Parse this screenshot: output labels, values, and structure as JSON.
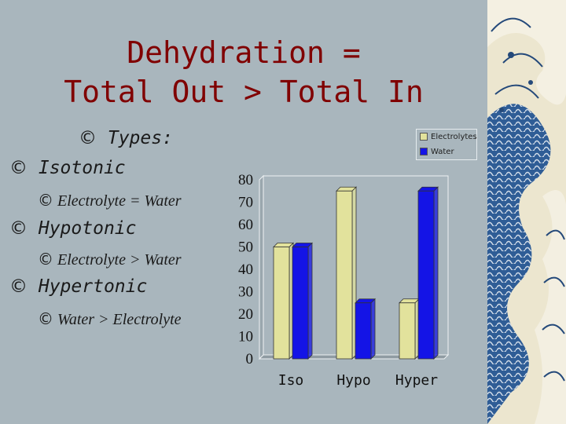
{
  "slide": {
    "title_line1": "Dehydration =",
    "title_line2": "Total Out > Total In",
    "bullet_symbol": "©",
    "types_label": "Types:",
    "items": [
      {
        "label": "Isotonic",
        "detail": "Electrolyte = Water"
      },
      {
        "label": "Hypotonic",
        "detail": "Electrolyte > Water"
      },
      {
        "label": "Hypertonic",
        "detail": "Water  > Electrolyte"
      }
    ]
  },
  "colors": {
    "title": "#800000",
    "background": "#a9b6bd",
    "electrolytes": "#e2e29c",
    "water": "#1414e6"
  },
  "chart_data": {
    "type": "bar",
    "categories": [
      "Iso",
      "Hypo",
      "Hyper"
    ],
    "series": [
      {
        "name": "Electrolytes",
        "values": [
          50,
          75,
          25
        ]
      },
      {
        "name": "Water",
        "values": [
          50,
          25,
          75
        ]
      }
    ],
    "ylim": [
      0,
      80
    ],
    "yticks": [
      "0",
      "10",
      "20",
      "30",
      "40",
      "50",
      "60",
      "70",
      "80"
    ],
    "legend": "top-right",
    "grid": false
  }
}
